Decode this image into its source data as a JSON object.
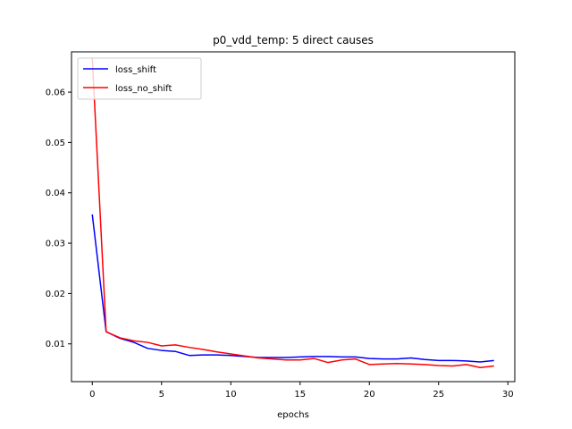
{
  "chart_data": {
    "type": "line",
    "title": "p0_vdd_temp: 5 direct causes",
    "xlabel": "epochs",
    "ylabel": "",
    "xlim": [
      -1.5,
      30.5
    ],
    "ylim": [
      0.0025,
      0.068
    ],
    "xticks": [
      0,
      5,
      10,
      15,
      20,
      25,
      30
    ],
    "xtick_labels": [
      "0",
      "5",
      "10",
      "15",
      "20",
      "25",
      "30"
    ],
    "yticks": [
      0.01,
      0.02,
      0.03,
      0.04,
      0.05,
      0.06
    ],
    "ytick_labels": [
      "0.01",
      "0.02",
      "0.03",
      "0.04",
      "0.05",
      "0.06"
    ],
    "grid": false,
    "legend_position": "top-left",
    "x": [
      0,
      1,
      2,
      3,
      4,
      5,
      6,
      7,
      8,
      9,
      10,
      11,
      12,
      13,
      14,
      15,
      16,
      17,
      18,
      19,
      20,
      21,
      22,
      23,
      24,
      25,
      26,
      27,
      28,
      29
    ],
    "series": [
      {
        "name": "loss_shift",
        "color": "#0000ff",
        "values": [
          0.0357,
          0.0124,
          0.0111,
          0.0103,
          0.0091,
          0.0087,
          0.0085,
          0.0077,
          0.0078,
          0.0078,
          0.0077,
          0.0075,
          0.0073,
          0.0073,
          0.0073,
          0.0074,
          0.0075,
          0.0075,
          0.0074,
          0.0074,
          0.0071,
          0.007,
          0.007,
          0.0072,
          0.0069,
          0.0067,
          0.0067,
          0.0066,
          0.0064,
          0.0067
        ]
      },
      {
        "name": "loss_no_shift",
        "color": "#ff0000",
        "values": [
          0.0668,
          0.0124,
          0.0112,
          0.0106,
          0.0103,
          0.0096,
          0.0098,
          0.0093,
          0.0089,
          0.0084,
          0.008,
          0.0076,
          0.0072,
          0.007,
          0.0068,
          0.0068,
          0.0071,
          0.0063,
          0.0068,
          0.007,
          0.0059,
          0.006,
          0.0061,
          0.006,
          0.0059,
          0.0057,
          0.0056,
          0.0059,
          0.0053,
          0.0056
        ]
      }
    ]
  }
}
